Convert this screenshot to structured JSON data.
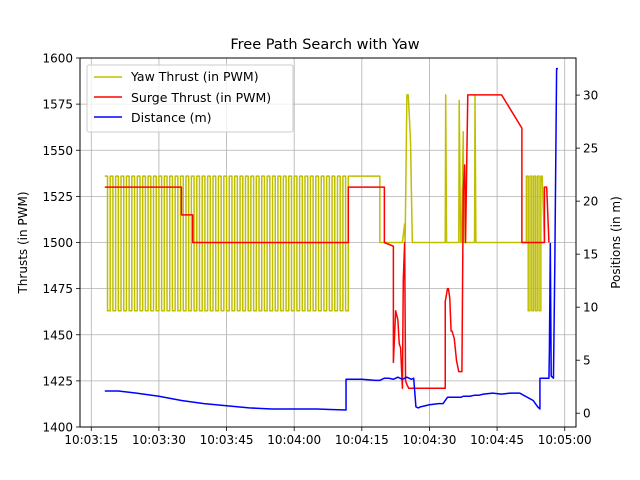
{
  "chart_data": {
    "type": "line",
    "title": "Free Path Search with Yaw",
    "xlabel": "",
    "ylabel": "Thrusts (in PWM)",
    "y2label": "Positions (in m)",
    "x_ticks": [
      "10:03:15",
      "10:03:30",
      "10:03:45",
      "10:04:00",
      "10:04:15",
      "10:04:30",
      "10:04:45",
      "10:05:00"
    ],
    "x_tick_seconds": [
      15,
      30,
      45,
      60,
      75,
      90,
      105,
      120
    ],
    "xlim_seconds": [
      12.5,
      122.5
    ],
    "ylim": [
      1400,
      1600
    ],
    "yticks": [
      1400,
      1425,
      1450,
      1475,
      1500,
      1525,
      1550,
      1575,
      1600
    ],
    "y2lim": [
      -1.3,
      33.5
    ],
    "y2ticks": [
      0,
      5,
      10,
      15,
      20,
      25,
      30
    ],
    "grid": true,
    "legend_position": "upper left",
    "x_time_hour_minute": "10:03",
    "series": [
      {
        "name": "Yaw Thrust (in PWM)",
        "color": "#bfbf00",
        "axis": "left",
        "segments": [
          {
            "type": "square",
            "x_start": 18.0,
            "x_end": 72.0,
            "period": 1.2,
            "high": 1536,
            "low": 1463
          },
          {
            "type": "points",
            "x": [
              72.0,
              79.0,
              79.0,
              84.0,
              84.5,
              84.6,
              85.0,
              85.3,
              85.8,
              86.2,
              93.5,
              93.6,
              93.8,
              94.0,
              96.5,
              96.6,
              96.9,
              97.1,
              97.5,
              97.6,
              98.0,
              98.5,
              99.0,
              100.0,
              100.1,
              100.3,
              100.5,
              107.0,
              111.0,
              111.5,
              111.5
            ],
            "y": [
              1536,
              1536,
              1500,
              1500,
              1510,
              1500,
              1580,
              1580,
              1555,
              1500,
              1500,
              1580,
              1500,
              1500,
              1500,
              1577,
              1500,
              1500,
              1560,
              1500,
              1500,
              1500,
              1500,
              1500,
              1580,
              1500,
              1500,
              1500,
              1500,
              1500,
              1536
            ]
          },
          {
            "type": "square",
            "x_start": 111.5,
            "x_end": 115.0,
            "period": 0.8,
            "high": 1536,
            "low": 1463
          },
          {
            "type": "points",
            "x": [
              115.0,
              115.5
            ],
            "y": [
              1536,
              1500
            ]
          }
        ]
      },
      {
        "name": "Surge Thrust (in PWM)",
        "color": "#ff0000",
        "axis": "left",
        "segments": [
          {
            "type": "points",
            "x": [
              18.0,
              35.0,
              35.0,
              37.5,
              37.5,
              72.0,
              72.0,
              80.0,
              80.0,
              82.0,
              82.0,
              82.5,
              83.0,
              83.3,
              83.6,
              84.0,
              84.2,
              84.5,
              84.7,
              85.0,
              85.4,
              85.7,
              86.0,
              87.0,
              87.0,
              93.5,
              93.5,
              94.0,
              94.2,
              94.5,
              94.8,
              95.0,
              95.5,
              96.0,
              96.5,
              97.0,
              97.2,
              97.5,
              97.8,
              98.0,
              98.5,
              99.0,
              99.3,
              99.5,
              100.0,
              100.3,
              100.5,
              101.0,
              101.2,
              101.5,
              102.0,
              103.0,
              106.0,
              110.5,
              110.5,
              114.0,
              114.5,
              115.5,
              115.5,
              116.0,
              116.5,
              116.5
            ],
            "y": [
              1530,
              1530,
              1515,
              1515,
              1500,
              1500,
              1530,
              1530,
              1500,
              1498,
              1435,
              1463,
              1458,
              1445,
              1443,
              1421,
              1480,
              1500,
              1425,
              1423,
              1421,
              1421,
              1421,
              1421,
              1421,
              1421,
              1468,
              1475,
              1475,
              1470,
              1452,
              1452,
              1448,
              1436,
              1430,
              1430,
              1430,
              1528,
              1542,
              1500,
              1580,
              1580,
              1580,
              1580,
              1580,
              1580,
              1580,
              1580,
              1580,
              1580,
              1580,
              1580,
              1580,
              1562,
              1500,
              1500,
              1500,
              1500,
              1530,
              1530,
              1500,
              1500
            ]
          }
        ]
      },
      {
        "name": "Distance (m)",
        "color": "#0000ff",
        "axis": "right",
        "segments": [
          {
            "type": "points",
            "x": [
              18.0,
              21.0,
              25.0,
              30.0,
              35.0,
              40.0,
              45.0,
              50.0,
              55.0,
              60.0,
              65.0,
              68.0,
              71.5,
              71.5,
              75.0,
              78.0,
              79.0,
              80.0,
              81.0,
              82.0,
              83.0,
              84.0,
              85.0,
              86.0,
              86.5,
              87.0,
              87.5,
              88.0,
              90.0,
              92.0,
              93.0,
              94.0,
              96.0,
              97.0,
              97.5,
              98.0,
              99.0,
              100.0,
              101.0,
              102.0,
              104.0,
              106.0,
              108.0,
              110.0,
              113.0,
              114.0,
              114.5,
              114.5,
              115.5,
              116.0,
              116.5,
              116.6,
              116.8,
              117.0,
              117.5,
              117.8,
              118.2,
              118.3,
              118.5
            ],
            "y": [
              2.1,
              2.1,
              1.9,
              1.6,
              1.2,
              0.9,
              0.7,
              0.5,
              0.4,
              0.4,
              0.4,
              0.35,
              0.3,
              3.2,
              3.2,
              3.1,
              3.1,
              3.3,
              3.3,
              3.2,
              3.4,
              3.2,
              3.4,
              3.2,
              3.3,
              0.6,
              0.5,
              0.6,
              0.8,
              0.9,
              0.9,
              1.5,
              1.5,
              1.5,
              1.6,
              1.6,
              1.6,
              1.7,
              1.7,
              1.8,
              1.9,
              1.8,
              1.9,
              1.9,
              1.2,
              0.6,
              0.4,
              3.3,
              3.3,
              3.3,
              3.3,
              6.0,
              16.0,
              3.5,
              3.3,
              14.0,
              32.5,
              32.5,
              32.5
            ]
          }
        ]
      }
    ]
  }
}
